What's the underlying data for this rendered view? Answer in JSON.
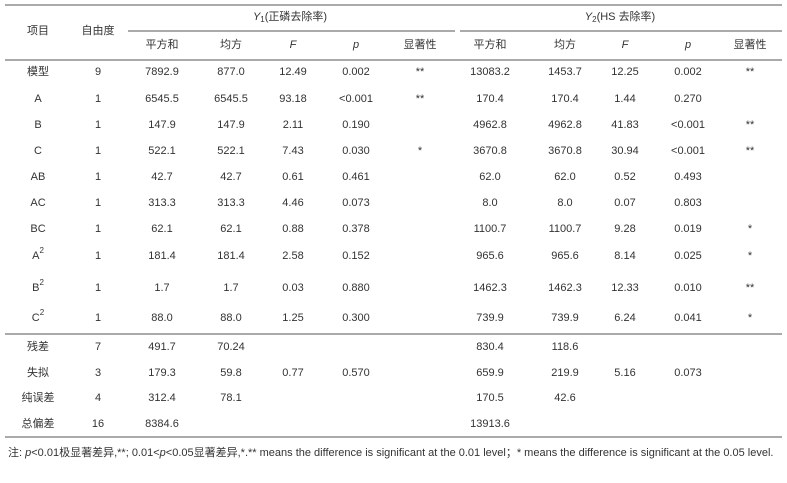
{
  "header": {
    "row_label": "项目",
    "df": "自由度",
    "groups": [
      {
        "symbol": "Y",
        "subscript": "1",
        "name": "(正磷去除率)",
        "columns": [
          "平方和",
          "均方",
          "F",
          "p",
          "显著性"
        ]
      },
      {
        "symbol": "Y",
        "subscript": "2",
        "name": "(HS 去除率)",
        "columns": [
          "平方和",
          "均方",
          "F",
          "p",
          "显著性"
        ]
      }
    ]
  },
  "table": {
    "rows": [
      {
        "label": "模型",
        "cells": [
          "9",
          "7892.9",
          "877.0",
          "12.49",
          "0.002",
          "**",
          "13083.2",
          "1453.7",
          "12.25",
          "0.002",
          "**"
        ]
      },
      {
        "label": "A",
        "cells": [
          "1",
          "6545.5",
          "6545.5",
          "93.18",
          "<0.001",
          "**",
          "170.4",
          "170.4",
          "1.44",
          "0.270",
          null
        ]
      },
      {
        "label": "B",
        "cells": [
          "1",
          "147.9",
          "147.9",
          "2.11",
          "0.190",
          null,
          "4962.8",
          "4962.8",
          "41.83",
          "<0.001",
          "**"
        ]
      },
      {
        "label": "C",
        "cells": [
          "1",
          "522.1",
          "522.1",
          "7.43",
          "0.030",
          "*",
          "3670.8",
          "3670.8",
          "30.94",
          "<0.001",
          "**"
        ]
      },
      {
        "label": "AB",
        "cells": [
          "1",
          "42.7",
          "42.7",
          "0.61",
          "0.461",
          null,
          "62.0",
          "62.0",
          "0.52",
          "0.493",
          null
        ]
      },
      {
        "label": "AC",
        "cells": [
          "1",
          "313.3",
          "313.3",
          "4.46",
          "0.073",
          null,
          "8.0",
          "8.0",
          "0.07",
          "0.803",
          null
        ]
      },
      {
        "label": "BC",
        "cells": [
          "1",
          "62.1",
          "62.1",
          "0.88",
          "0.378",
          null,
          "1100.7",
          "1100.7",
          "9.28",
          "0.019",
          "*"
        ]
      },
      {
        "label": "A",
        "sup": "2",
        "cells": [
          "1",
          "181.4",
          "181.4",
          "2.58",
          "0.152",
          null,
          "965.6",
          "965.6",
          "8.14",
          "0.025",
          "*"
        ]
      },
      {
        "label": "B",
        "sup": "2",
        "cells": [
          "1",
          "1.7",
          "1.7",
          "0.03",
          "0.880",
          null,
          "1462.3",
          "1462.3",
          "12.33",
          "0.010",
          "**"
        ]
      },
      {
        "label": "C",
        "sup": "2",
        "cells": [
          "1",
          "88.0",
          "88.0",
          "1.25",
          "0.300",
          null,
          "739.9",
          "739.9",
          "6.24",
          "0.041",
          "*"
        ]
      },
      {
        "label": "残差",
        "cells": [
          "7",
          "491.7",
          "70.24",
          null,
          null,
          null,
          "830.4",
          "118.6",
          null,
          null,
          null
        ]
      },
      {
        "label": "失拟",
        "cells": [
          "3",
          "179.3",
          "59.8",
          "0.77",
          "0.570",
          null,
          "659.9",
          "219.9",
          "5.16",
          "0.073",
          null
        ]
      },
      {
        "label": "纯误差",
        "cells": [
          "4",
          "312.4",
          "78.1",
          null,
          null,
          null,
          "170.5",
          "42.6",
          null,
          null,
          null
        ]
      },
      {
        "label": "总偏差",
        "cells": [
          "16",
          "8384.6",
          null,
          null,
          null,
          null,
          "13913.6",
          null,
          null,
          null,
          null
        ]
      }
    ]
  },
  "note": [
    {
      "text": "注: "
    },
    {
      "text": "p",
      "italic": true
    },
    {
      "text": "<0.01极显著差异,**; 0.01<"
    },
    {
      "text": "p",
      "italic": true
    },
    {
      "text": "<0.05显著差异,*.** means the difference is significant at the 0.01 level；* means the difference is significant at the 0.05 level."
    }
  ]
}
